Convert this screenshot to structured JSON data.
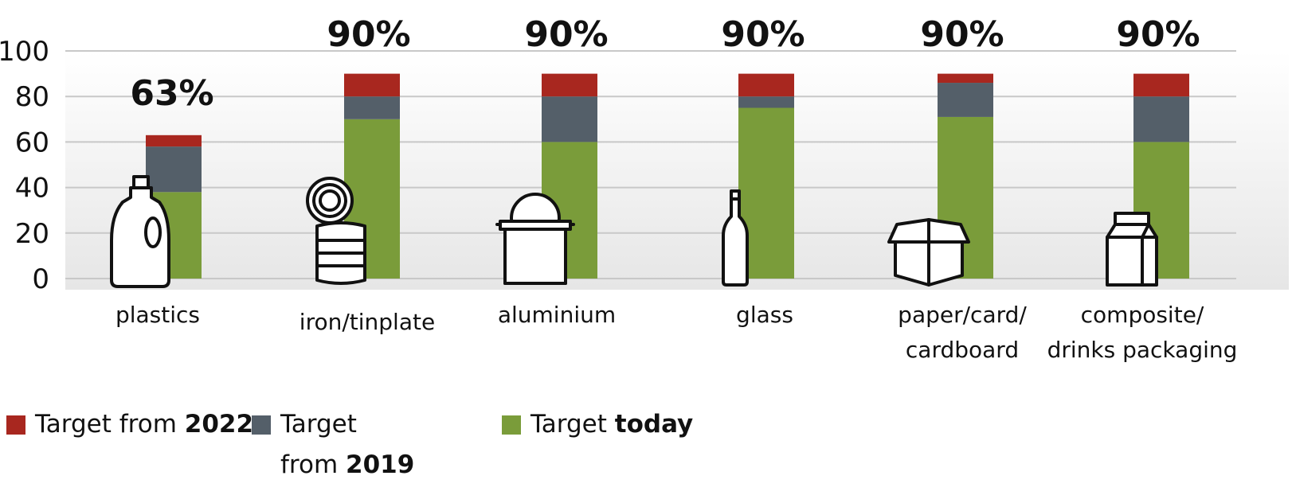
{
  "chart_data": {
    "type": "bar",
    "stacked": true,
    "categories": [
      "plastics",
      "iron/tinplate",
      "aluminium",
      "glass",
      "paper/card/ cardboard",
      "composite/ drinks packaging"
    ],
    "category_lines": [
      [
        "plastics"
      ],
      [
        "iron/tinplate"
      ],
      [
        "aluminium"
      ],
      [
        "glass"
      ],
      [
        "paper/card/",
        "cardboard"
      ],
      [
        "composite/",
        "drinks packaging"
      ]
    ],
    "series": [
      {
        "name": "Target today",
        "color": "#7a9c3a",
        "values": [
          38,
          70,
          60,
          75,
          71,
          60
        ]
      },
      {
        "name": "Target from 2019",
        "color": "#545f69",
        "values": [
          20,
          10,
          20,
          5,
          15,
          20
        ]
      },
      {
        "name": "Target from 2022",
        "color": "#a8271f",
        "values": [
          5,
          10,
          10,
          10,
          4,
          10
        ]
      }
    ],
    "totals": [
      "63%",
      "90%",
      "90%",
      "90%",
      "90%",
      "90%"
    ],
    "icons": [
      "bottle-icon",
      "tin-can-icon",
      "aluminium-bucket-icon",
      "glass-bottle-icon",
      "cardboard-box-icon",
      "drinks-carton-icon"
    ],
    "y_ticks": [
      "0",
      "20",
      "40",
      "60",
      "80",
      "100"
    ],
    "ylim": [
      0,
      100
    ],
    "grid": true,
    "legend_position": "bottom-left"
  },
  "legend": {
    "red": {
      "prefix": "Target from ",
      "bold": "2022"
    },
    "grey": {
      "line1": "Target",
      "prefix": "from ",
      "bold": "2019"
    },
    "green": {
      "prefix": "Target ",
      "bold": "today"
    }
  }
}
